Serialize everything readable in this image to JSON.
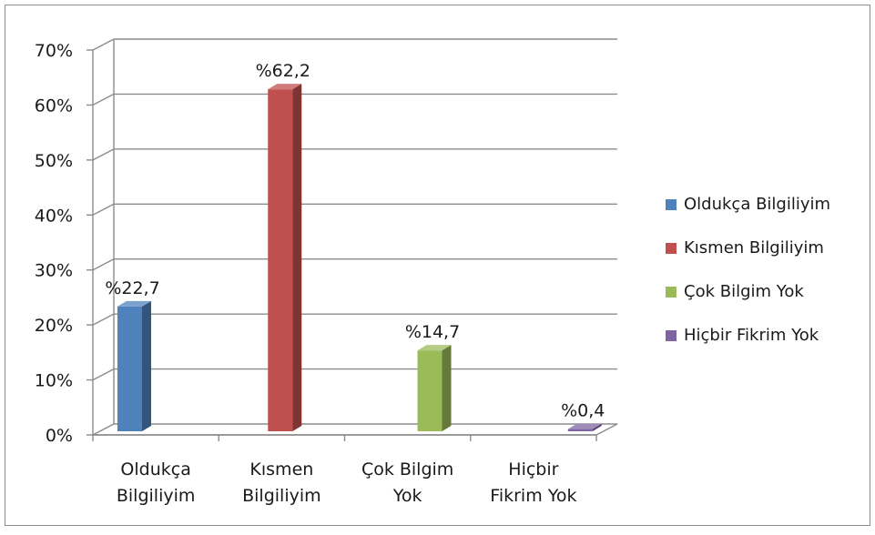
{
  "chart_data": {
    "type": "bar",
    "categories": [
      [
        "Oldukça",
        "Bilgiliyim"
      ],
      [
        "Kısmen",
        "Bilgiliyim"
      ],
      [
        "Çok Bilgim",
        "Yok"
      ],
      [
        "Hiçbir",
        "Fikrim Yok"
      ]
    ],
    "values": [
      22.7,
      62.2,
      14.7,
      0.4
    ],
    "data_labels": [
      "%22,7",
      "%62,2",
      "%14,7",
      "%0,4"
    ],
    "series": [
      {
        "name": "Oldukça Bilgiliyim",
        "color": "#4f81bd"
      },
      {
        "name": "Kısmen Bilgiliyim",
        "color": "#c0504d"
      },
      {
        "name": "Çok Bilgim Yok",
        "color": "#9bbb59"
      },
      {
        "name": "Hiçbir Fikrim Yok",
        "color": "#8064a2"
      }
    ],
    "y_ticks": [
      "0%",
      "10%",
      "20%",
      "30%",
      "40%",
      "50%",
      "60%",
      "70%"
    ],
    "ylim": [
      0,
      70
    ],
    "grid": true,
    "three_d": true,
    "legend_position": "right",
    "title": "",
    "xlabel": "",
    "ylabel": ""
  }
}
